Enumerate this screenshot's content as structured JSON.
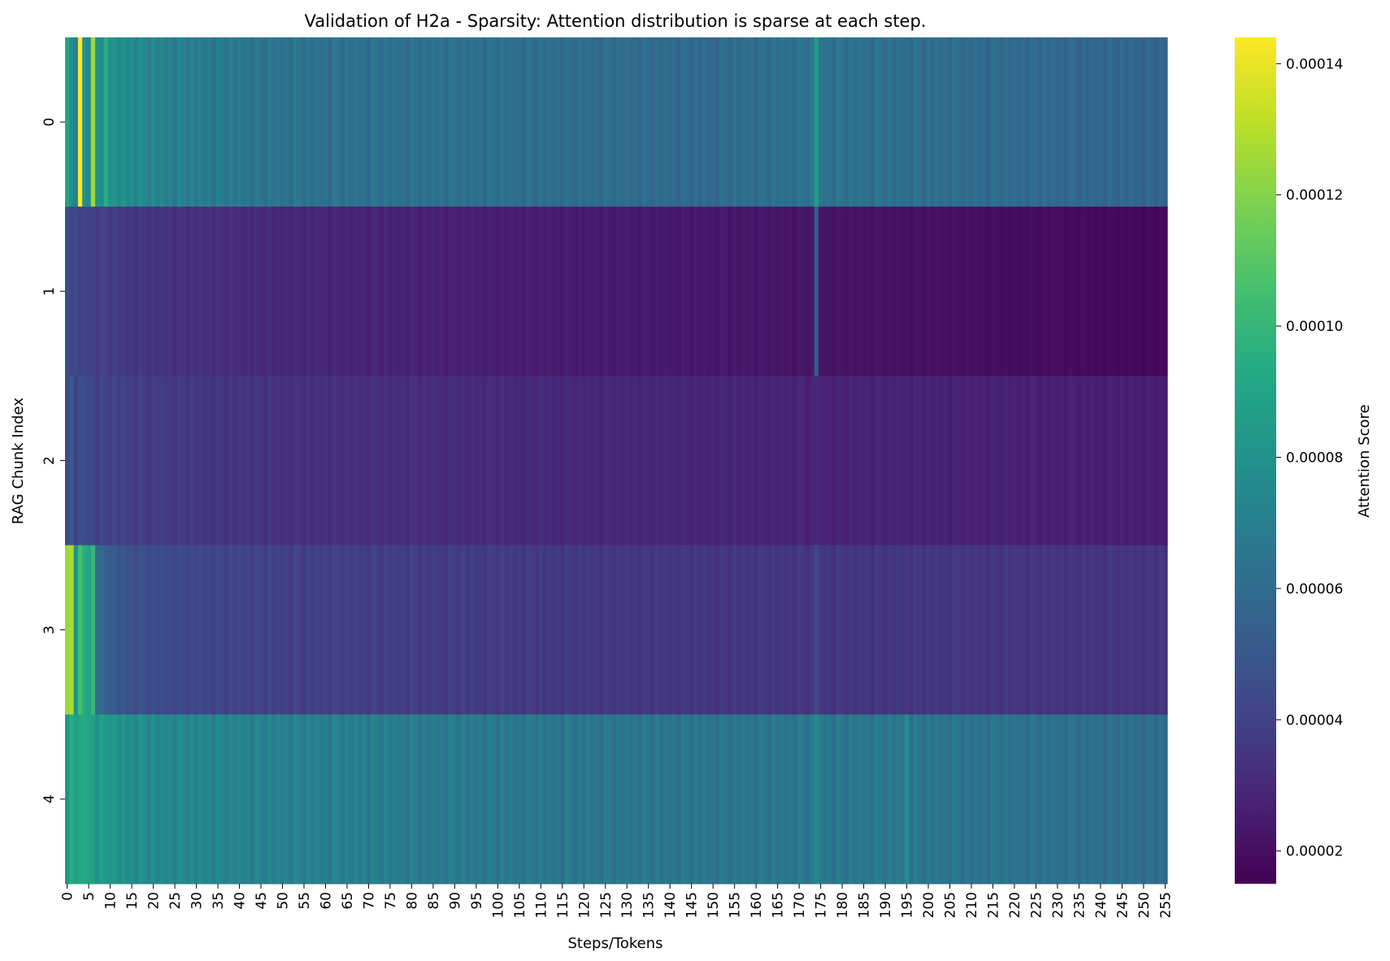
{
  "chart_data": {
    "type": "heatmap",
    "title": "Validation of H2a - Sparsity: Attention distribution is sparse at each step.",
    "xlabel": "Steps/Tokens",
    "ylabel": "RAG Chunk Index",
    "colorbar_label": "Attention Score",
    "colormap": "viridis",
    "n_steps": 256,
    "x_tick_step": 5,
    "x_tick_labels": [
      "0",
      "5",
      "10",
      "15",
      "20",
      "25",
      "30",
      "35",
      "40",
      "45",
      "50",
      "55",
      "60",
      "65",
      "70",
      "75",
      "80",
      "85",
      "90",
      "95",
      "100",
      "105",
      "110",
      "115",
      "120",
      "125",
      "130",
      "135",
      "140",
      "145",
      "150",
      "155",
      "160",
      "165",
      "170",
      "175",
      "180",
      "185",
      "190",
      "195",
      "200",
      "205",
      "210",
      "215",
      "220",
      "225",
      "230",
      "235",
      "240",
      "245",
      "250",
      "255"
    ],
    "y_tick_labels": [
      "0",
      "1",
      "2",
      "3",
      "4"
    ],
    "value_range": [
      1.5e-05,
      0.000144
    ],
    "colorbar_ticks": [
      2e-05,
      4e-05,
      6e-05,
      8e-05,
      0.0001,
      0.00012,
      0.00014
    ],
    "colorbar_tick_labels": [
      "0.00002",
      "0.00004",
      "0.00006",
      "0.00008",
      "0.00010",
      "0.00012",
      "0.00014"
    ],
    "rows": [
      {
        "index": 0,
        "anchors": [
          [
            0,
            9e-05
          ],
          [
            1,
            7.8e-05
          ],
          [
            2,
            7e-05
          ],
          [
            3,
            0.000144
          ],
          [
            4,
            8e-05
          ],
          [
            5,
            7.5e-05
          ],
          [
            6,
            0.000125
          ],
          [
            7,
            8e-05
          ],
          [
            8,
            7.8e-05
          ],
          [
            9,
            9.5e-05
          ],
          [
            10,
            8e-05
          ],
          [
            15,
            7.8e-05
          ],
          [
            20,
            7.4e-05
          ],
          [
            30,
            7e-05
          ],
          [
            50,
            6.5e-05
          ],
          [
            100,
            6.3e-05
          ],
          [
            150,
            6e-05
          ],
          [
            175,
            6.5e-05
          ],
          [
            200,
            6.2e-05
          ],
          [
            255,
            5.8e-05
          ]
        ],
        "spikes": [
          [
            174,
            8.5e-05
          ]
        ]
      },
      {
        "index": 1,
        "anchors": [
          [
            0,
            4.5e-05
          ],
          [
            5,
            4e-05
          ],
          [
            20,
            3.5e-05
          ],
          [
            50,
            3e-05
          ],
          [
            100,
            2.6e-05
          ],
          [
            150,
            2.4e-05
          ],
          [
            200,
            2.1e-05
          ],
          [
            255,
            1.8e-05
          ]
        ],
        "spikes": [
          [
            174,
            5.2e-05
          ]
        ]
      },
      {
        "index": 2,
        "anchors": [
          [
            0,
            4.4e-05
          ],
          [
            1,
            5.2e-05
          ],
          [
            2,
            4e-05
          ],
          [
            3,
            4.7e-05
          ],
          [
            5,
            4.2e-05
          ],
          [
            20,
            3.8e-05
          ],
          [
            50,
            3.4e-05
          ],
          [
            100,
            3.1e-05
          ],
          [
            150,
            2.9e-05
          ],
          [
            200,
            2.8e-05
          ],
          [
            255,
            2.6e-05
          ]
        ],
        "spikes": [
          [
            174,
            3e-05
          ]
        ]
      },
      {
        "index": 3,
        "anchors": [
          [
            0,
            0.000125
          ],
          [
            1,
            0.000128
          ],
          [
            2,
            8e-05
          ],
          [
            3,
            0.000105
          ],
          [
            4,
            9.5e-05
          ],
          [
            5,
            9e-05
          ],
          [
            6,
            0.0001
          ],
          [
            7,
            6e-05
          ],
          [
            10,
            5.2e-05
          ],
          [
            20,
            4.5e-05
          ],
          [
            50,
            4e-05
          ],
          [
            100,
            3.8e-05
          ],
          [
            150,
            3.6e-05
          ],
          [
            200,
            3.6e-05
          ],
          [
            255,
            3.5e-05
          ]
        ],
        "spikes": [
          [
            174,
            4.2e-05
          ]
        ]
      },
      {
        "index": 4,
        "anchors": [
          [
            0,
            8.2e-05
          ],
          [
            1,
            9.5e-05
          ],
          [
            2,
            8.8e-05
          ],
          [
            3,
            9.2e-05
          ],
          [
            5,
            9e-05
          ],
          [
            10,
            8.2e-05
          ],
          [
            20,
            7.7e-05
          ],
          [
            50,
            7.2e-05
          ],
          [
            100,
            6.8e-05
          ],
          [
            150,
            6.6e-05
          ],
          [
            195,
            6.8e-05
          ],
          [
            200,
            6.6e-05
          ],
          [
            255,
            6.2e-05
          ]
        ],
        "spikes": [
          [
            174,
            7.5e-05
          ],
          [
            195,
            7.8e-05
          ]
        ]
      }
    ],
    "stripe_pattern": [
      1.0,
      0.93,
      1.03,
      0.95,
      1.02,
      0.96,
      1.0,
      0.92,
      1.04
    ]
  }
}
